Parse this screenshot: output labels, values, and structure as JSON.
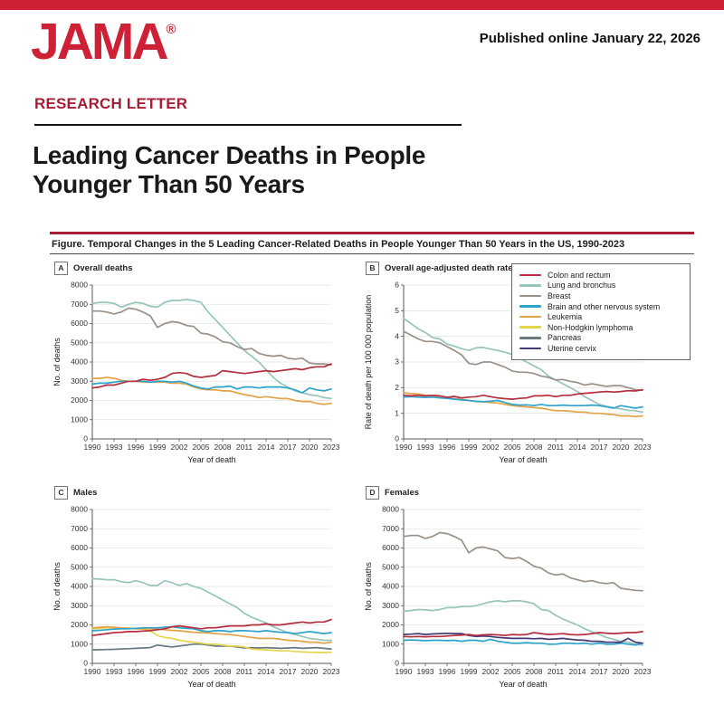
{
  "header": {
    "logo": "JAMA",
    "logo_mark": "®",
    "published": "Published online January 22, 2026",
    "section": "RESEARCH LETTER",
    "title_line1": "Leading Cancer Deaths in People",
    "title_line2": "Younger Than 50 Years"
  },
  "figure": {
    "caption": "Figure. Temporal Changes in the 5 Leading Cancer-Related Deaths in People Younger Than 50 Years in the US, 1990-2023"
  },
  "colors": {
    "brand_red": "#cf2135",
    "dark_red": "#a51e36",
    "colon": "#b52e3e",
    "lung": "#96c5bb",
    "breast": "#9a9088",
    "brain": "#2ea3cb",
    "leukemia": "#e0a347",
    "nhl": "#e6d44c",
    "pancreas": "#697a82",
    "cervix": "#453a74"
  },
  "legend": {
    "entries": [
      {
        "label": "Colon and rectum",
        "color": "colon"
      },
      {
        "label": "Lung and bronchus",
        "color": "lung"
      },
      {
        "label": "Breast",
        "color": "breast"
      },
      {
        "label": "Brain and other nervous system",
        "color": "brain"
      },
      {
        "label": "Leukemia",
        "color": "leukemia"
      },
      {
        "label": "Non-Hodgkin lymphoma",
        "color": "nhl"
      },
      {
        "label": "Pancreas",
        "color": "pancreas"
      },
      {
        "label": "Uterine cervix",
        "color": "cervix"
      }
    ]
  },
  "chart_data": [
    {
      "type": "line",
      "panel": "A",
      "title": "Overall deaths",
      "xlabel": "Year of death",
      "ylabel": "No. of deaths",
      "x_start": 1990,
      "x_end": 2023,
      "xticks": [
        1990,
        1993,
        1996,
        1999,
        2002,
        2005,
        2008,
        2011,
        2014,
        2017,
        2020,
        2023
      ],
      "ylim": [
        0,
        8000
      ],
      "yticks": [
        0,
        1000,
        2000,
        3000,
        4000,
        5000,
        6000,
        7000,
        8000
      ],
      "series": [
        {
          "name": "Lung and bronchus",
          "color": "lung",
          "values": [
            7050,
            7100,
            7100,
            7050,
            6850,
            7000,
            7100,
            7050,
            6900,
            6850,
            7100,
            7200,
            7200,
            7250,
            7200,
            7100,
            6600,
            6200,
            5800,
            5400,
            5000,
            4600,
            4300,
            4000,
            3600,
            3200,
            2900,
            2700,
            2500,
            2400,
            2300,
            2250,
            2150,
            2100
          ]
        },
        {
          "name": "Breast",
          "color": "breast",
          "values": [
            6650,
            6650,
            6600,
            6500,
            6600,
            6800,
            6750,
            6600,
            6400,
            5800,
            6000,
            6100,
            6050,
            5900,
            5850,
            5500,
            5450,
            5300,
            5050,
            5000,
            4800,
            4650,
            4700,
            4450,
            4350,
            4300,
            4350,
            4200,
            4150,
            4200,
            3950,
            3900,
            3900,
            3850
          ]
        },
        {
          "name": "Leukemia",
          "color": "leukemia",
          "values": [
            3150,
            3150,
            3200,
            3150,
            3050,
            3000,
            3000,
            2950,
            2950,
            2950,
            2950,
            2900,
            2900,
            2850,
            2700,
            2600,
            2550,
            2550,
            2500,
            2500,
            2400,
            2300,
            2250,
            2150,
            2200,
            2150,
            2100,
            2100,
            2000,
            1950,
            1950,
            1850,
            1800,
            1850
          ]
        },
        {
          "name": "Brain and other nervous system",
          "color": "brain",
          "values": [
            2850,
            2900,
            2900,
            2950,
            3000,
            3000,
            3000,
            3000,
            2950,
            3000,
            3000,
            2950,
            3000,
            2900,
            2750,
            2650,
            2600,
            2700,
            2700,
            2750,
            2600,
            2700,
            2700,
            2650,
            2700,
            2700,
            2700,
            2650,
            2550,
            2400,
            2650,
            2550,
            2500,
            2600
          ]
        },
        {
          "name": "Colon and rectum",
          "color": "colon",
          "values": [
            2650,
            2700,
            2800,
            2800,
            2900,
            3000,
            3000,
            3100,
            3050,
            3100,
            3200,
            3400,
            3450,
            3400,
            3250,
            3200,
            3250,
            3300,
            3550,
            3500,
            3450,
            3400,
            3450,
            3500,
            3550,
            3500,
            3550,
            3600,
            3650,
            3600,
            3700,
            3750,
            3750,
            3900
          ]
        }
      ]
    },
    {
      "type": "line",
      "panel": "B",
      "title": "Overall age-adjusted death rate",
      "xlabel": "Year of death",
      "ylabel": "Rate of death per 100 000 population",
      "x_start": 1990,
      "x_end": 2023,
      "xticks": [
        1990,
        1993,
        1996,
        1999,
        2002,
        2005,
        2008,
        2011,
        2014,
        2017,
        2020,
        2023
      ],
      "ylim": [
        0,
        6
      ],
      "yticks": [
        0,
        1,
        2,
        3,
        4,
        5,
        6
      ],
      "series": [
        {
          "name": "Lung and bronchus",
          "color": "lung",
          "values": [
            4.7,
            4.5,
            4.3,
            4.15,
            3.95,
            3.9,
            3.7,
            3.62,
            3.52,
            3.45,
            3.55,
            3.57,
            3.5,
            3.45,
            3.38,
            3.3,
            3.15,
            3.0,
            2.85,
            2.7,
            2.45,
            2.3,
            2.15,
            2.0,
            1.85,
            1.65,
            1.5,
            1.35,
            1.27,
            1.22,
            1.17,
            1.12,
            1.1,
            1.05
          ]
        },
        {
          "name": "Breast",
          "color": "breast",
          "values": [
            4.2,
            4.05,
            3.9,
            3.8,
            3.8,
            3.75,
            3.6,
            3.45,
            3.28,
            2.95,
            2.9,
            3.0,
            3.0,
            2.9,
            2.8,
            2.65,
            2.6,
            2.6,
            2.55,
            2.45,
            2.4,
            2.3,
            2.32,
            2.25,
            2.2,
            2.1,
            2.15,
            2.1,
            2.05,
            2.08,
            2.08,
            2.0,
            1.92,
            1.9
          ]
        },
        {
          "name": "Leukemia",
          "color": "leukemia",
          "values": [
            1.8,
            1.77,
            1.75,
            1.7,
            1.68,
            1.65,
            1.6,
            1.57,
            1.55,
            1.5,
            1.46,
            1.45,
            1.42,
            1.4,
            1.35,
            1.3,
            1.27,
            1.25,
            1.22,
            1.2,
            1.15,
            1.1,
            1.1,
            1.08,
            1.05,
            1.05,
            1.0,
            1.0,
            0.97,
            0.95,
            0.9,
            0.9,
            0.87,
            0.9
          ]
        },
        {
          "name": "Brain and other nervous system",
          "color": "brain",
          "values": [
            1.63,
            1.65,
            1.63,
            1.62,
            1.63,
            1.6,
            1.58,
            1.55,
            1.52,
            1.5,
            1.47,
            1.45,
            1.47,
            1.5,
            1.42,
            1.35,
            1.32,
            1.33,
            1.3,
            1.35,
            1.3,
            1.3,
            1.32,
            1.3,
            1.3,
            1.3,
            1.32,
            1.3,
            1.25,
            1.2,
            1.3,
            1.25,
            1.2,
            1.25
          ]
        },
        {
          "name": "Colon and rectum",
          "color": "colon",
          "values": [
            1.7,
            1.68,
            1.7,
            1.68,
            1.7,
            1.68,
            1.62,
            1.66,
            1.6,
            1.63,
            1.65,
            1.7,
            1.65,
            1.6,
            1.57,
            1.55,
            1.58,
            1.6,
            1.68,
            1.68,
            1.7,
            1.65,
            1.7,
            1.7,
            1.75,
            1.78,
            1.8,
            1.83,
            1.85,
            1.83,
            1.85,
            1.88,
            1.87,
            1.92
          ]
        }
      ]
    },
    {
      "type": "line",
      "panel": "C",
      "title": "Males",
      "xlabel": "Year of death",
      "ylabel": "No. of deaths",
      "x_start": 1990,
      "x_end": 2023,
      "xticks": [
        1990,
        1993,
        1996,
        1999,
        2002,
        2005,
        2008,
        2011,
        2014,
        2017,
        2020,
        2023
      ],
      "ylim": [
        0,
        8000
      ],
      "yticks": [
        0,
        1000,
        2000,
        3000,
        4000,
        5000,
        6000,
        7000,
        8000
      ],
      "series": [
        {
          "name": "Lung and bronchus",
          "color": "lung",
          "values": [
            4400,
            4380,
            4350,
            4350,
            4250,
            4200,
            4300,
            4200,
            4050,
            4050,
            4300,
            4200,
            4050,
            4150,
            4000,
            3900,
            3700,
            3500,
            3300,
            3100,
            2900,
            2600,
            2400,
            2250,
            2100,
            1900,
            1750,
            1600,
            1500,
            1400,
            1300,
            1250,
            1200,
            1200
          ]
        },
        {
          "name": "Pancreas",
          "color": "pancreas",
          "values": [
            700,
            710,
            720,
            730,
            750,
            760,
            780,
            800,
            820,
            950,
            900,
            850,
            900,
            950,
            1000,
            1000,
            950,
            900,
            900,
            900,
            850,
            800,
            820,
            800,
            820,
            800,
            780,
            800,
            820,
            780,
            800,
            820,
            780,
            750
          ]
        },
        {
          "name": "Non-Hodgkin lymphoma",
          "color": "nhl",
          "values": [
            1800,
            1820,
            1850,
            1850,
            1830,
            1850,
            1800,
            1780,
            1700,
            1450,
            1350,
            1300,
            1200,
            1150,
            1100,
            1050,
            1000,
            1000,
            950,
            900,
            900,
            850,
            750,
            720,
            700,
            680,
            650,
            650,
            620,
            600,
            580,
            570,
            560,
            580
          ]
        },
        {
          "name": "Leukemia",
          "color": "leukemia",
          "values": [
            1850,
            1880,
            1900,
            1880,
            1850,
            1820,
            1800,
            1800,
            1800,
            1780,
            1750,
            1720,
            1700,
            1650,
            1620,
            1600,
            1580,
            1550,
            1520,
            1500,
            1450,
            1400,
            1350,
            1300,
            1300,
            1300,
            1250,
            1200,
            1180,
            1150,
            1100,
            1100,
            1050,
            1100
          ]
        },
        {
          "name": "Brain and other nervous system",
          "color": "brain",
          "values": [
            1700,
            1720,
            1750,
            1780,
            1800,
            1800,
            1820,
            1850,
            1850,
            1850,
            1880,
            1900,
            1850,
            1820,
            1800,
            1700,
            1650,
            1700,
            1700,
            1650,
            1700,
            1700,
            1680,
            1650,
            1700,
            1650,
            1620,
            1600,
            1550,
            1600,
            1650,
            1600,
            1550,
            1600
          ]
        },
        {
          "name": "Colon and rectum",
          "color": "colon",
          "values": [
            1450,
            1500,
            1550,
            1600,
            1620,
            1650,
            1650,
            1680,
            1700,
            1750,
            1800,
            1900,
            1950,
            1900,
            1850,
            1800,
            1850,
            1850,
            1900,
            1950,
            1950,
            1950,
            2000,
            2000,
            2050,
            2000,
            2000,
            2050,
            2100,
            2150,
            2100,
            2150,
            2150,
            2280
          ]
        }
      ]
    },
    {
      "type": "line",
      "panel": "D",
      "title": "Females",
      "xlabel": "Year of death",
      "ylabel": "No. of deaths",
      "x_start": 1990,
      "x_end": 2023,
      "xticks": [
        1990,
        1993,
        1996,
        1999,
        2002,
        2005,
        2008,
        2011,
        2014,
        2017,
        2020,
        2023
      ],
      "ylim": [
        0,
        8000
      ],
      "yticks": [
        0,
        1000,
        2000,
        3000,
        4000,
        5000,
        6000,
        7000,
        8000
      ],
      "series": [
        {
          "name": "Breast",
          "color": "breast",
          "values": [
            6600,
            6650,
            6650,
            6500,
            6600,
            6800,
            6750,
            6600,
            6400,
            5750,
            6000,
            6050,
            5950,
            5850,
            5500,
            5450,
            5500,
            5300,
            5050,
            4950,
            4700,
            4600,
            4650,
            4450,
            4350,
            4250,
            4300,
            4200,
            4150,
            4200,
            3900,
            3850,
            3800,
            3780
          ]
        },
        {
          "name": "Lung and bronchus",
          "color": "lung",
          "values": [
            2700,
            2750,
            2800,
            2780,
            2750,
            2800,
            2900,
            2900,
            2950,
            2950,
            3000,
            3100,
            3200,
            3250,
            3200,
            3250,
            3250,
            3200,
            3100,
            2800,
            2750,
            2500,
            2300,
            2150,
            2000,
            1800,
            1650,
            1500,
            1350,
            1250,
            1150,
            1100,
            1000,
            950
          ]
        },
        {
          "name": "Brain and other nervous system",
          "color": "brain",
          "values": [
            1200,
            1220,
            1200,
            1180,
            1200,
            1200,
            1180,
            1200,
            1150,
            1200,
            1200,
            1150,
            1250,
            1150,
            1100,
            1050,
            1050,
            1080,
            1050,
            1050,
            1000,
            1000,
            1050,
            1050,
            1020,
            1050,
            1000,
            1050,
            1000,
            1000,
            1050,
            1000,
            950,
            1050
          ]
        },
        {
          "name": "Uterine cervix",
          "color": "cervix",
          "values": [
            1500,
            1520,
            1550,
            1500,
            1530,
            1550,
            1560,
            1550,
            1550,
            1450,
            1400,
            1420,
            1400,
            1350,
            1320,
            1300,
            1300,
            1300,
            1280,
            1300,
            1250,
            1270,
            1300,
            1250,
            1220,
            1200,
            1150,
            1150,
            1100,
            1100,
            1100,
            1300,
            1100,
            1050
          ]
        },
        {
          "name": "Colon and rectum",
          "color": "colon",
          "values": [
            1400,
            1380,
            1400,
            1380,
            1400,
            1400,
            1420,
            1450,
            1470,
            1500,
            1450,
            1480,
            1500,
            1480,
            1450,
            1500,
            1480,
            1500,
            1600,
            1550,
            1500,
            1520,
            1550,
            1500,
            1480,
            1500,
            1550,
            1600,
            1570,
            1550,
            1570,
            1600,
            1600,
            1650
          ]
        }
      ]
    }
  ]
}
